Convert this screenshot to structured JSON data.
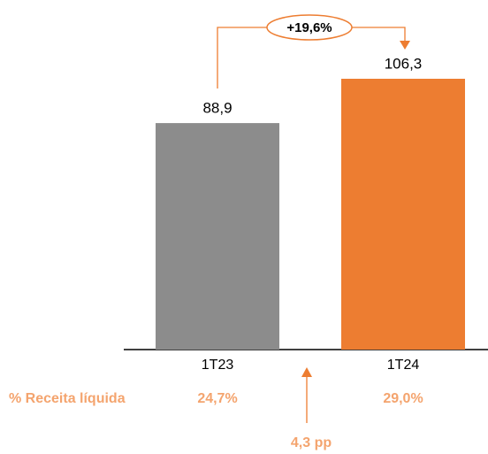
{
  "chart_data": {
    "type": "bar",
    "categories": [
      "1T23",
      "1T24"
    ],
    "values": [
      88.9,
      106.3
    ],
    "value_labels": [
      "88,9",
      "106,3"
    ],
    "colors": [
      "#8c8c8c",
      "#ed7d31"
    ],
    "growth_label": "+19,6%",
    "row_label": "% Receita líquida",
    "row_values": [
      "24,7%",
      "29,0%"
    ],
    "difference_label": "4,3 pp"
  }
}
